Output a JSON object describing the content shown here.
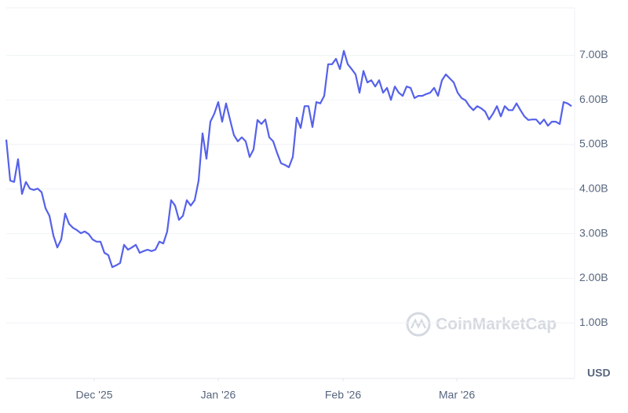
{
  "chart_data": {
    "type": "line",
    "currency_label": "USD",
    "watermark": "CoinMarketCap",
    "color": "#5561ea",
    "grid": true,
    "ylim": [
      0,
      8
    ],
    "yticks": [
      {
        "value": 1,
        "label": "1.00B"
      },
      {
        "value": 2,
        "label": "2.00B"
      },
      {
        "value": 3,
        "label": "3.00B"
      },
      {
        "value": 4,
        "label": "4.00B"
      },
      {
        "value": 5,
        "label": "5.00B"
      },
      {
        "value": 6,
        "label": "6.00B"
      },
      {
        "value": 7,
        "label": "7.00B"
      }
    ],
    "xlim": [
      0,
      144
    ],
    "xticks": [
      {
        "value": 22.4,
        "label": "Dec '25"
      },
      {
        "value": 54,
        "label": "Jan '26"
      },
      {
        "value": 85.8,
        "label": "Feb '26"
      },
      {
        "value": 114.8,
        "label": "Mar '26"
      }
    ],
    "values": [
      5.11,
      4.19,
      4.16,
      4.67,
      3.89,
      4.16,
      4.01,
      3.98,
      4.01,
      3.93,
      3.57,
      3.4,
      2.96,
      2.69,
      2.87,
      3.45,
      3.22,
      3.13,
      3.08,
      3.01,
      3.05,
      2.99,
      2.87,
      2.82,
      2.82,
      2.57,
      2.52,
      2.25,
      2.29,
      2.34,
      2.75,
      2.64,
      2.69,
      2.75,
      2.57,
      2.61,
      2.64,
      2.61,
      2.64,
      2.82,
      2.78,
      3.05,
      3.75,
      3.63,
      3.31,
      3.4,
      3.75,
      3.63,
      3.75,
      4.19,
      5.25,
      4.68,
      5.51,
      5.69,
      5.95,
      5.51,
      5.92,
      5.56,
      5.21,
      5.07,
      5.16,
      5.07,
      4.72,
      4.89,
      5.55,
      5.46,
      5.56,
      5.16,
      5.07,
      4.81,
      4.58,
      4.54,
      4.49,
      4.72,
      5.6,
      5.37,
      5.86,
      5.86,
      5.39,
      5.95,
      5.92,
      6.09,
      6.8,
      6.8,
      6.92,
      6.69,
      7.1,
      6.8,
      6.69,
      6.57,
      6.16,
      6.65,
      6.39,
      6.44,
      6.3,
      6.44,
      6.16,
      6.27,
      6.0,
      6.3,
      6.16,
      6.09,
      6.3,
      6.27,
      6.04,
      6.09,
      6.09,
      6.13,
      6.16,
      6.27,
      6.09,
      6.44,
      6.57,
      6.48,
      6.39,
      6.16,
      6.04,
      5.99,
      5.86,
      5.77,
      5.86,
      5.81,
      5.74,
      5.56,
      5.69,
      5.86,
      5.63,
      5.86,
      5.77,
      5.77,
      5.92,
      5.77,
      5.63,
      5.55,
      5.56,
      5.56,
      5.46,
      5.56,
      5.42,
      5.51,
      5.51,
      5.46,
      5.95,
      5.92,
      5.86
    ]
  }
}
